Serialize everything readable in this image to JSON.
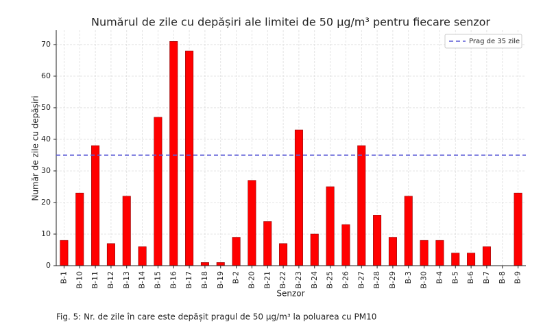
{
  "chart_data": {
    "type": "bar",
    "title": "Numărul de zile cu depășiri ale limitei de 50 µg/m³ pentru fiecare senzor",
    "x_label": "Senzor",
    "y_label": "Număr de zile cu depășiri",
    "categories": [
      "B-1",
      "B-10",
      "B-11",
      "B-12",
      "B-13",
      "B-14",
      "B-15",
      "B-16",
      "B-17",
      "B-18",
      "B-19",
      "B-2",
      "B-20",
      "B-21",
      "B-22",
      "B-23",
      "B-24",
      "B-25",
      "B-26",
      "B-27",
      "B-28",
      "B-29",
      "B-3",
      "B-30",
      "B-4",
      "B-5",
      "B-6",
      "B-7",
      "B-8",
      "B-9"
    ],
    "values": [
      8,
      23,
      38,
      7,
      22,
      6,
      47,
      71,
      68,
      1,
      1,
      9,
      27,
      14,
      7,
      43,
      10,
      25,
      13,
      38,
      16,
      9,
      22,
      8,
      8,
      4,
      4,
      6,
      0,
      23
    ],
    "color": "#ff0000",
    "ylim": [
      0,
      74.55
    ],
    "yticks": [
      0,
      10,
      20,
      30,
      40,
      50,
      60,
      70
    ],
    "grid": true,
    "threshold": {
      "value": 35,
      "label": "Prag de 35 zile",
      "color": "#5b5bd6"
    },
    "legend": "upper right",
    "caption": "Fig. 5:  Nr. de zile în care este depășit pragul de 50 µg/m³ la poluarea cu PM10"
  }
}
